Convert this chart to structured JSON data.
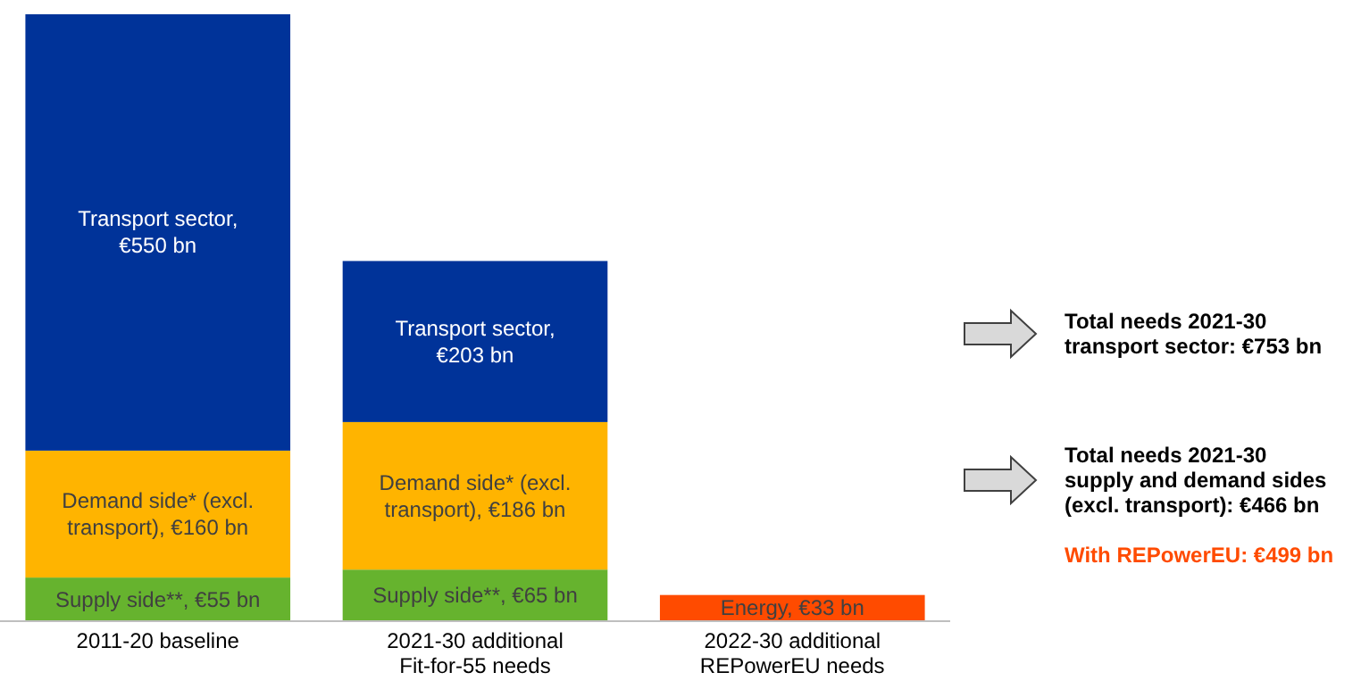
{
  "chart_data": {
    "type": "bar",
    "stacked": true,
    "categories": [
      "2011-20 baseline",
      "2021-30 additional Fit-for-55 needs",
      "2022-30 additional REPowerEU needs"
    ],
    "series": [
      {
        "color": "#66b32e",
        "values": [
          55,
          65,
          null
        ],
        "value_labels": [
          "Supply side**, €55 bn",
          "Supply side**, €65 bn",
          null
        ]
      },
      {
        "color": "#ffb400",
        "values": [
          160,
          186,
          null
        ],
        "value_labels": [
          "Demand side* (excl. transport), €160 bn",
          "Demand side* (excl. transport), €186 bn",
          null
        ]
      },
      {
        "color": "#003399",
        "values": [
          550,
          203,
          null
        ],
        "value_labels": [
          "Transport sector, €550 bn",
          "Transport sector, €203 bn",
          null
        ]
      },
      {
        "color": "#ff4b00",
        "values": [
          null,
          null,
          33
        ],
        "value_labels": [
          null,
          null,
          "Energy, €33 bn"
        ]
      }
    ],
    "annotations": [
      "Total needs 2021-30\ntransport sector: €753 bn",
      "Total needs 2021-30\nsupply and demand sides\n(excl. transport): €466 bn",
      "With REPowerEU: €499 bn"
    ]
  }
}
